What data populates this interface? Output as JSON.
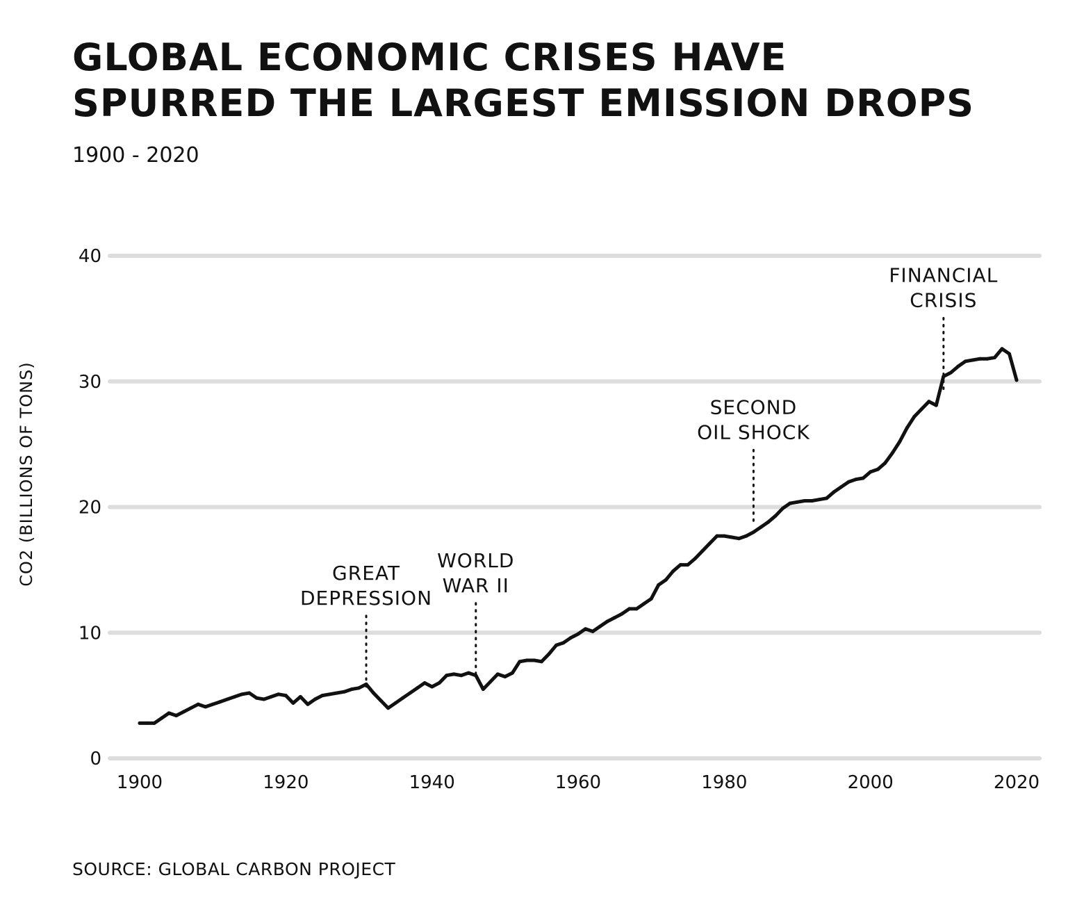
{
  "chart_data": {
    "type": "line",
    "title": "GLOBAL ECONOMIC CRISES HAVE SPURRED THE LARGEST EMISSION DROPS",
    "title_lines": [
      "GLOBAL ECONOMIC CRISES HAVE",
      "SPURRED THE LARGEST EMISSION DROPS"
    ],
    "subtitle": "1900 - 2020",
    "source": "SOURCE: GLOBAL CARBON PROJECT",
    "xlabel": "",
    "ylabel": "CO2 (BILLIONS OF TONS)",
    "xlim": [
      1900,
      2020
    ],
    "ylim": [
      0,
      40
    ],
    "x_ticks": [
      1900,
      1920,
      1940,
      1960,
      1980,
      2000,
      2020
    ],
    "y_ticks": [
      0,
      10,
      20,
      30,
      40
    ],
    "grid": "horizontal",
    "legend": "none",
    "colors": {
      "line": "#111111",
      "grid": "#dddddd",
      "text": "#111111",
      "background": "#ffffff"
    },
    "series": [
      {
        "x": [
          1900,
          1901,
          1902,
          1903,
          1904,
          1905,
          1906,
          1907,
          1908,
          1909,
          1910,
          1911,
          1912,
          1913,
          1914,
          1915,
          1916,
          1917,
          1918,
          1919,
          1920,
          1921,
          1922,
          1923,
          1924,
          1925,
          1926,
          1927,
          1928,
          1929,
          1930,
          1931,
          1932,
          1933,
          1934,
          1935,
          1936,
          1937,
          1938,
          1939,
          1940,
          1941,
          1942,
          1943,
          1944,
          1945,
          1946,
          1947,
          1948,
          1949,
          1950,
          1951,
          1952,
          1953,
          1954,
          1955,
          1956,
          1957,
          1958,
          1959,
          1960,
          1961,
          1962,
          1963,
          1964,
          1965,
          1966,
          1967,
          1968,
          1969,
          1970,
          1971,
          1972,
          1973,
          1974,
          1975,
          1976,
          1977,
          1978,
          1979,
          1980,
          1981,
          1982,
          1983,
          1984,
          1985,
          1986,
          1987,
          1988,
          1989,
          1990,
          1991,
          1992,
          1993,
          1994,
          1995,
          1996,
          1997,
          1998,
          1999,
          2000,
          2001,
          2002,
          2003,
          2004,
          2005,
          2006,
          2007,
          2008,
          2009,
          2010,
          2011,
          2012,
          2013,
          2014,
          2015,
          2016,
          2017,
          2018,
          2019,
          2020
        ],
        "y": [
          2.8,
          2.8,
          2.8,
          3.2,
          3.6,
          3.4,
          3.7,
          4.0,
          4.3,
          4.1,
          4.3,
          4.5,
          4.7,
          4.9,
          5.1,
          5.2,
          4.8,
          4.7,
          4.9,
          5.1,
          5.0,
          4.4,
          4.9,
          4.3,
          4.7,
          5.0,
          5.1,
          5.2,
          5.3,
          5.5,
          5.6,
          5.9,
          5.2,
          4.6,
          4.0,
          4.4,
          4.8,
          5.2,
          5.6,
          6.0,
          5.7,
          6.0,
          6.6,
          6.7,
          6.6,
          6.8,
          6.6,
          5.5,
          6.1,
          6.7,
          6.5,
          6.8,
          7.7,
          7.8,
          7.8,
          7.7,
          8.3,
          9.0,
          9.2,
          9.6,
          9.9,
          10.3,
          10.1,
          10.5,
          10.9,
          11.2,
          11.5,
          11.9,
          11.9,
          12.3,
          12.7,
          13.8,
          14.2,
          14.9,
          15.4,
          15.4,
          15.9,
          16.5,
          17.1,
          17.7,
          17.7,
          17.6,
          17.5,
          17.7,
          18.0,
          18.4,
          18.8,
          19.3,
          19.9,
          20.3,
          20.4,
          20.5,
          20.5,
          20.6,
          20.7,
          21.2,
          21.6,
          22.0,
          22.2,
          22.3,
          22.8,
          23.0,
          23.5,
          24.3,
          25.2,
          26.3,
          27.2,
          27.8,
          28.4,
          28.1,
          30.4,
          30.7,
          31.2,
          31.6,
          31.7,
          31.8,
          31.8,
          31.9,
          32.6,
          32.2,
          30.1
        ]
      }
    ],
    "annotations": [
      {
        "lines": [
          "GREAT",
          "DEPRESSION"
        ],
        "x": 1931,
        "y": 4.6
      },
      {
        "lines": [
          "WORLD",
          "WAR II"
        ],
        "x": 1946,
        "y": 5.6
      },
      {
        "lines": [
          "SECOND",
          "OIL SHOCK"
        ],
        "x": 1984,
        "y": 17.8
      },
      {
        "lines": [
          "FINANCIAL",
          "CRISIS"
        ],
        "x": 2010,
        "y": 28.3
      }
    ]
  }
}
